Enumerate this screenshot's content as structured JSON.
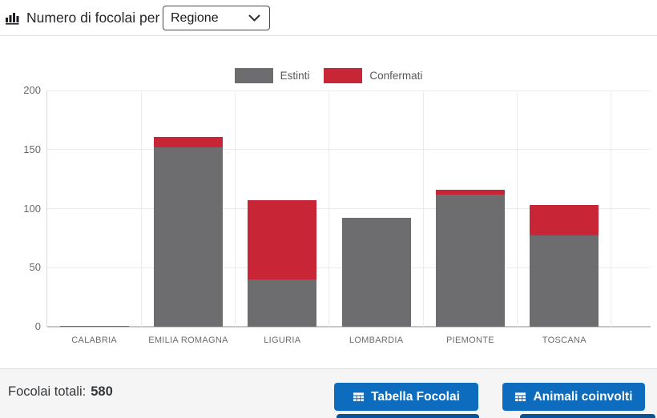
{
  "header": {
    "title": "Numero di focolai per",
    "select_value": "Regione"
  },
  "chart_data": {
    "type": "bar",
    "stacked": true,
    "categories": [
      "CALABRIA",
      "EMILIA ROMAGNA",
      "LIGURIA",
      "LOMBARDIA",
      "PIEMONTE",
      "TOSCANA"
    ],
    "series": [
      {
        "name": "Estinti",
        "color": "#6d6d6f",
        "values": [
          1,
          152,
          40,
          92,
          112,
          77
        ]
      },
      {
        "name": "Confermati",
        "color": "#c82537",
        "values": [
          0,
          9,
          67,
          0,
          4,
          26
        ]
      }
    ],
    "ylim": [
      0,
      200
    ],
    "yticks": [
      0,
      50,
      100,
      150,
      200
    ],
    "grid": true,
    "legend_position": "top",
    "category_totals": [
      1,
      161,
      107,
      92,
      116,
      103
    ]
  },
  "footer": {
    "total_label": "Focolai totali:",
    "total_value": "580",
    "buttons": [
      {
        "icon": "table-icon",
        "label": "Tabella Focolai"
      },
      {
        "icon": "table-icon",
        "label": "Animali coinvolti"
      }
    ]
  },
  "colors": {
    "estinti": "#6d6d6f",
    "confermati": "#c82537",
    "button_primary": "#0d6cbd",
    "button_cutoff": "#0a5394"
  }
}
